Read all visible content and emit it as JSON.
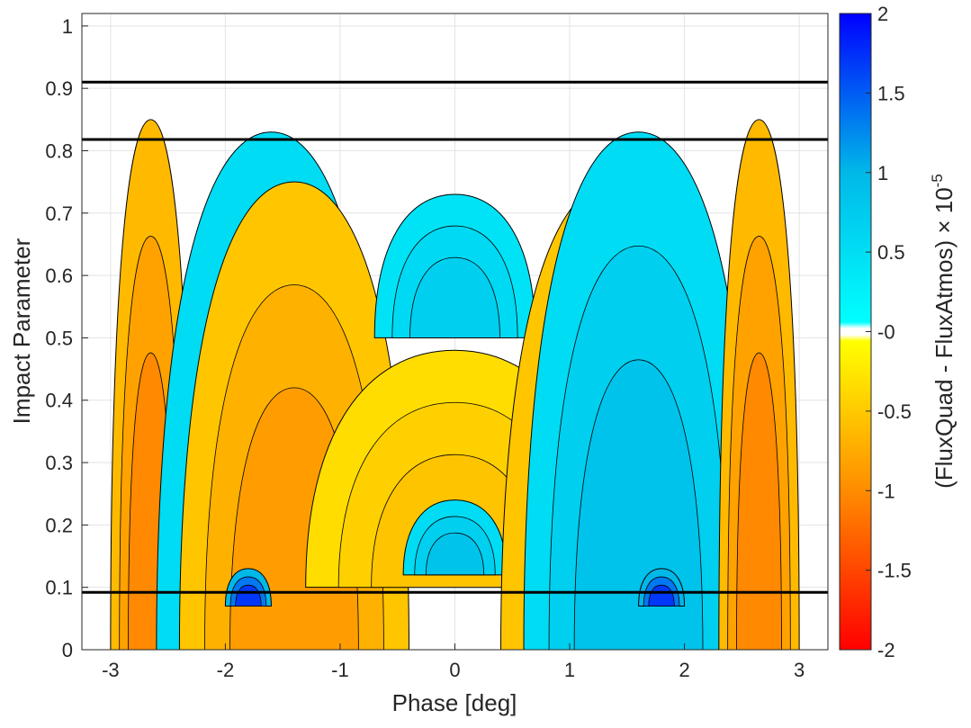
{
  "chart_data": {
    "type": "heatmap",
    "subtype": "filled-contour",
    "title": "",
    "xlabel": "Phase [deg]",
    "ylabel": "Impact Parameter",
    "xlim": [
      -3.25,
      3.25
    ],
    "ylim": [
      0,
      1.02
    ],
    "xticks": [
      -3,
      -2,
      -1,
      0,
      1,
      2,
      3
    ],
    "xtick_labels": [
      "-3",
      "-2",
      "-1",
      "0",
      "1",
      "2",
      "3"
    ],
    "yticks": [
      0,
      0.1,
      0.2,
      0.3,
      0.4,
      0.5,
      0.6,
      0.7,
      0.8,
      0.9,
      1
    ],
    "ytick_labels": [
      "0",
      "0.1",
      "0.2",
      "0.3",
      "0.4",
      "0.5",
      "0.6",
      "0.7",
      "0.8",
      "0.9",
      "1"
    ],
    "grid": true,
    "horizontal_lines_y": [
      0.91,
      0.818,
      0.092
    ],
    "colorbar": {
      "label_prefix": "(FluxQuad - FluxAtmos) × 10",
      "label_exponent": "-5",
      "range": [
        -2,
        2
      ],
      "ticks": [
        2,
        1.5,
        1,
        0.5,
        -0.0,
        -0.5,
        -1,
        -1.5,
        -2
      ],
      "tick_labels": [
        "2",
        "1.5",
        "1",
        "0.5",
        "-0",
        "-0.5",
        "-1",
        "-1.5",
        "-2"
      ],
      "colors": {
        "max": "#0000ff",
        "positive_mid": "#00b8e8",
        "positive_low": "#00ffff",
        "zero": "#ffffff",
        "negative_low": "#ffff00",
        "negative_mid": "#ff8c00",
        "min": "#ff0000"
      }
    },
    "regions": [
      {
        "name": "left-outer-negative-band",
        "sign": "negative",
        "value": -0.6,
        "phase_range": [
          -3.0,
          -2.3
        ],
        "b_range": [
          0.0,
          0.85
        ]
      },
      {
        "name": "left-inner-positive-band",
        "sign": "positive",
        "value": 0.5,
        "phase_range": [
          -2.6,
          -0.6
        ],
        "b_range": [
          0.0,
          0.83
        ]
      },
      {
        "name": "left-middle-negative-arc",
        "sign": "negative",
        "value": -0.5,
        "phase_range": [
          -2.4,
          -0.4
        ],
        "b_range": [
          0.0,
          0.75
        ]
      },
      {
        "name": "central-positive-lobe",
        "sign": "positive",
        "value": 0.4,
        "phase_range": [
          -0.7,
          0.7
        ],
        "b_range": [
          0.5,
          0.73
        ]
      },
      {
        "name": "central-negative-arch",
        "sign": "negative",
        "value": -0.3,
        "phase_range": [
          -1.3,
          1.3
        ],
        "b_range": [
          0.1,
          0.48
        ]
      },
      {
        "name": "central-lower-positive",
        "sign": "positive",
        "value": 0.5,
        "phase_range": [
          -0.45,
          0.45
        ],
        "b_range": [
          0.12,
          0.24
        ]
      },
      {
        "name": "right-middle-negative-arc",
        "sign": "negative",
        "value": -0.5,
        "phase_range": [
          0.4,
          2.4
        ],
        "b_range": [
          0.0,
          0.75
        ]
      },
      {
        "name": "right-inner-positive-band",
        "sign": "positive",
        "value": 0.5,
        "phase_range": [
          0.6,
          2.6
        ],
        "b_range": [
          0.0,
          0.83
        ]
      },
      {
        "name": "right-outer-negative-band",
        "sign": "negative",
        "value": -0.6,
        "phase_range": [
          2.3,
          3.0
        ],
        "b_range": [
          0.0,
          0.85
        ]
      },
      {
        "name": "left-blue-spot",
        "sign": "positive",
        "value": 1.0,
        "phase_range": [
          -2.0,
          -1.6
        ],
        "b_range": [
          0.07,
          0.13
        ]
      },
      {
        "name": "right-blue-spot",
        "sign": "positive",
        "value": 1.0,
        "phase_range": [
          1.6,
          2.0
        ],
        "b_range": [
          0.07,
          0.13
        ]
      }
    ]
  }
}
